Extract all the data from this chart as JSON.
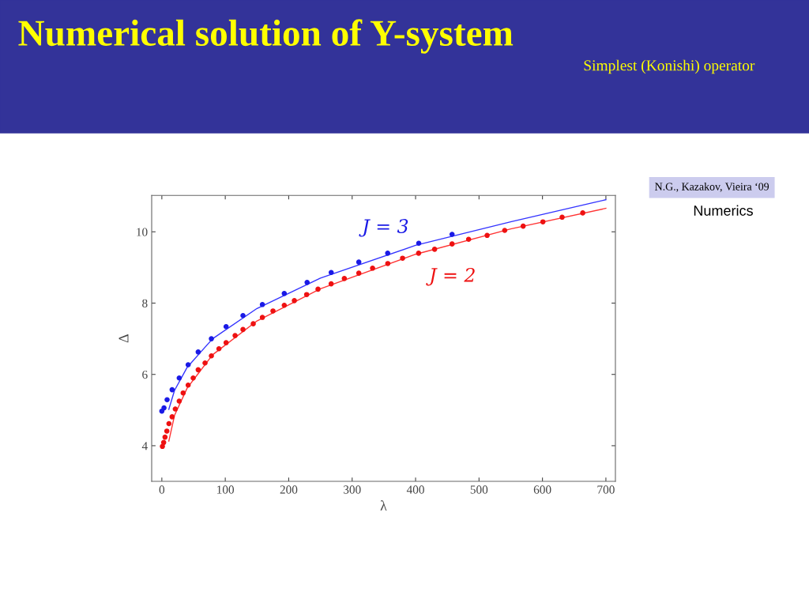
{
  "chart_data": {
    "type": "scatter",
    "title": "Numerical solution of Y-system",
    "subtitle": "Simplest (Konishi) operator",
    "xlabel": "λ",
    "ylabel": "Δ",
    "annotations": [
      "N.G., Kazakov, Vieira ‘09",
      "Numerics"
    ],
    "xlim": [
      -16,
      715
    ],
    "ylim": [
      3.0,
      11.02
    ],
    "xticks": [
      0,
      100,
      200,
      300,
      400,
      500,
      600,
      700
    ],
    "yticks": [
      4,
      6,
      8,
      10
    ],
    "grid": false,
    "legend": false,
    "series": [
      {
        "name": "J = 3",
        "marker": "circle",
        "color": "#1a1ae6",
        "x": [
          0,
          3.4,
          8.3,
          16.2,
          27.4,
          41.5,
          57.3,
          78.1,
          101.3,
          127.9,
          158.5,
          193,
          229,
          267,
          310.5,
          356,
          405,
          457.5
        ],
        "values": [
          4.97,
          5.06,
          5.29,
          5.57,
          5.9,
          6.27,
          6.63,
          7.0,
          7.34,
          7.65,
          7.96,
          8.27,
          8.58,
          8.86,
          9.15,
          9.4,
          9.68,
          9.93
        ]
      },
      {
        "name": "J = 2",
        "marker": "circle",
        "color": "#ee1111",
        "x": [
          0.9,
          2.9,
          5,
          7.9,
          11.2,
          16.2,
          21.2,
          27.4,
          33.6,
          41.5,
          49.4,
          57.3,
          68.1,
          78.1,
          90,
          101.3,
          115.5,
          127.9,
          144.1,
          158.5,
          175.2,
          193,
          208.9,
          228.3,
          246.2,
          266.9,
          287.7,
          310.5,
          332.2,
          356.2,
          379.5,
          404.8,
          430,
          457.5,
          483.6,
          512.8,
          540.5,
          569.6,
          600.7,
          631,
          663.5
        ],
        "values": [
          3.98,
          4.09,
          4.24,
          4.41,
          4.62,
          4.81,
          5.03,
          5.25,
          5.48,
          5.7,
          5.9,
          6.13,
          6.32,
          6.52,
          6.72,
          6.89,
          7.09,
          7.26,
          7.42,
          7.6,
          7.78,
          7.94,
          8.07,
          8.24,
          8.39,
          8.54,
          8.69,
          8.84,
          8.98,
          9.11,
          9.26,
          9.4,
          9.51,
          9.66,
          9.79,
          9.9,
          10.04,
          10.16,
          10.28,
          10.41,
          10.53
        ]
      },
      {
        "type": "line",
        "marker": "none",
        "color": "#3333ff",
        "x": [
          11,
          20,
          40,
          80,
          150,
          250,
          400,
          550,
          700
        ],
        "values": [
          5.02,
          5.55,
          6.2,
          7.0,
          7.85,
          8.7,
          9.62,
          10.28,
          10.9
        ]
      },
      {
        "type": "line",
        "marker": "none",
        "color": "#ff3333",
        "x": [
          11,
          20,
          40,
          80,
          150,
          250,
          400,
          550,
          700
        ],
        "values": [
          4.13,
          4.85,
          5.62,
          6.55,
          7.5,
          8.4,
          9.37,
          10.08,
          10.66
        ]
      }
    ]
  }
}
